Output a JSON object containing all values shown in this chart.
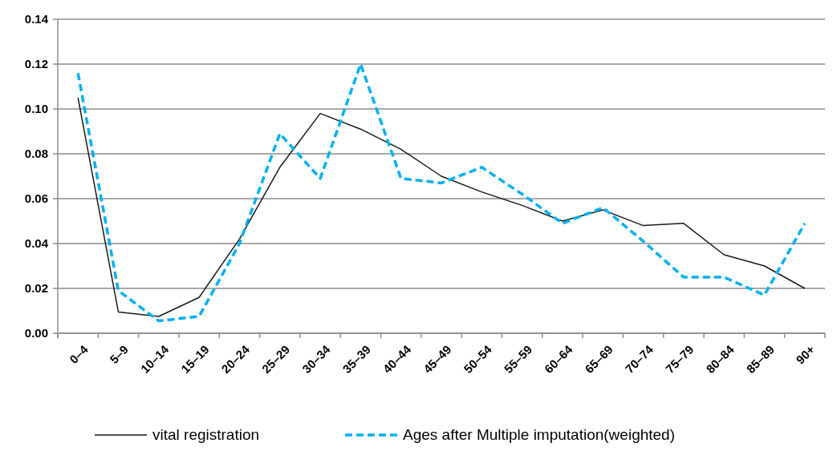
{
  "chart_data": {
    "type": "line",
    "categories": [
      "0–4",
      "5–9",
      "10–14",
      "15–19",
      "20–24",
      "25–29",
      "30–34",
      "35–39",
      "40–44",
      "45–49",
      "50–54",
      "55–59",
      "60–64",
      "65–69",
      "70–74",
      "75–79",
      "80–84",
      "85–89",
      "90+"
    ],
    "series": [
      {
        "name": "vital registration",
        "color": "#1a1a1a",
        "line_style": "solid",
        "values": [
          0.105,
          0.0095,
          0.0075,
          0.016,
          0.042,
          0.074,
          0.098,
          0.091,
          0.082,
          0.07,
          0.063,
          0.057,
          0.05,
          0.055,
          0.048,
          0.049,
          0.035,
          0.03,
          0.02
        ]
      },
      {
        "name": "Ages after Multiple imputation(weighted)",
        "color": "#00b0f0",
        "line_style": "dashed",
        "values": [
          0.116,
          0.019,
          0.0055,
          0.0075,
          0.04,
          0.089,
          0.069,
          0.12,
          0.069,
          0.067,
          0.074,
          0.062,
          0.049,
          0.056,
          0.041,
          0.025,
          0.025,
          0.017,
          0.049
        ]
      }
    ],
    "ylim": [
      0,
      0.14
    ],
    "yticks": [
      {
        "value": 0,
        "label": "0.00"
      },
      {
        "value": 0.02,
        "label": "0.02"
      },
      {
        "value": 0.04,
        "label": "0.04"
      },
      {
        "value": 0.06,
        "label": "0.06"
      },
      {
        "value": 0.08,
        "label": "0.08"
      },
      {
        "value": 0.1,
        "label": "0.10"
      },
      {
        "value": 0.12,
        "label": "0.12"
      },
      {
        "value": 0.14,
        "label": "0.14"
      }
    ],
    "grid": "y",
    "legend": "bottom",
    "marker": "none"
  }
}
